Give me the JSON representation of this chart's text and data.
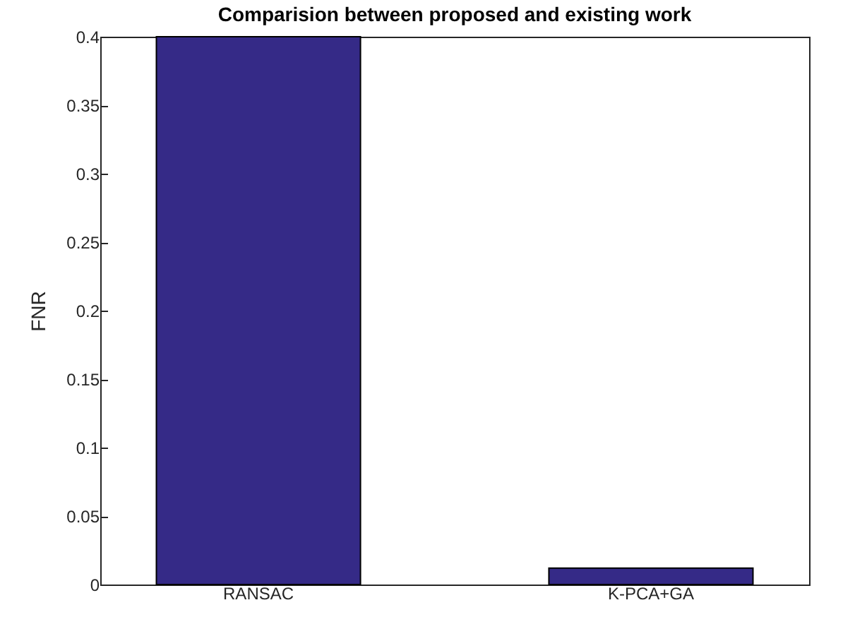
{
  "chart_data": {
    "type": "bar",
    "title": "Comparision between proposed and existing work",
    "ylabel": "FNR",
    "categories": [
      "RANSAC",
      "K-PCA+GA"
    ],
    "values": [
      0.4,
      0.012
    ],
    "color": "#352a87",
    "ylim": [
      0,
      0.4
    ],
    "yticks": [
      0,
      0.05,
      0.1,
      0.15,
      0.2,
      0.25,
      0.3,
      0.35,
      0.4
    ],
    "grid": false
  }
}
